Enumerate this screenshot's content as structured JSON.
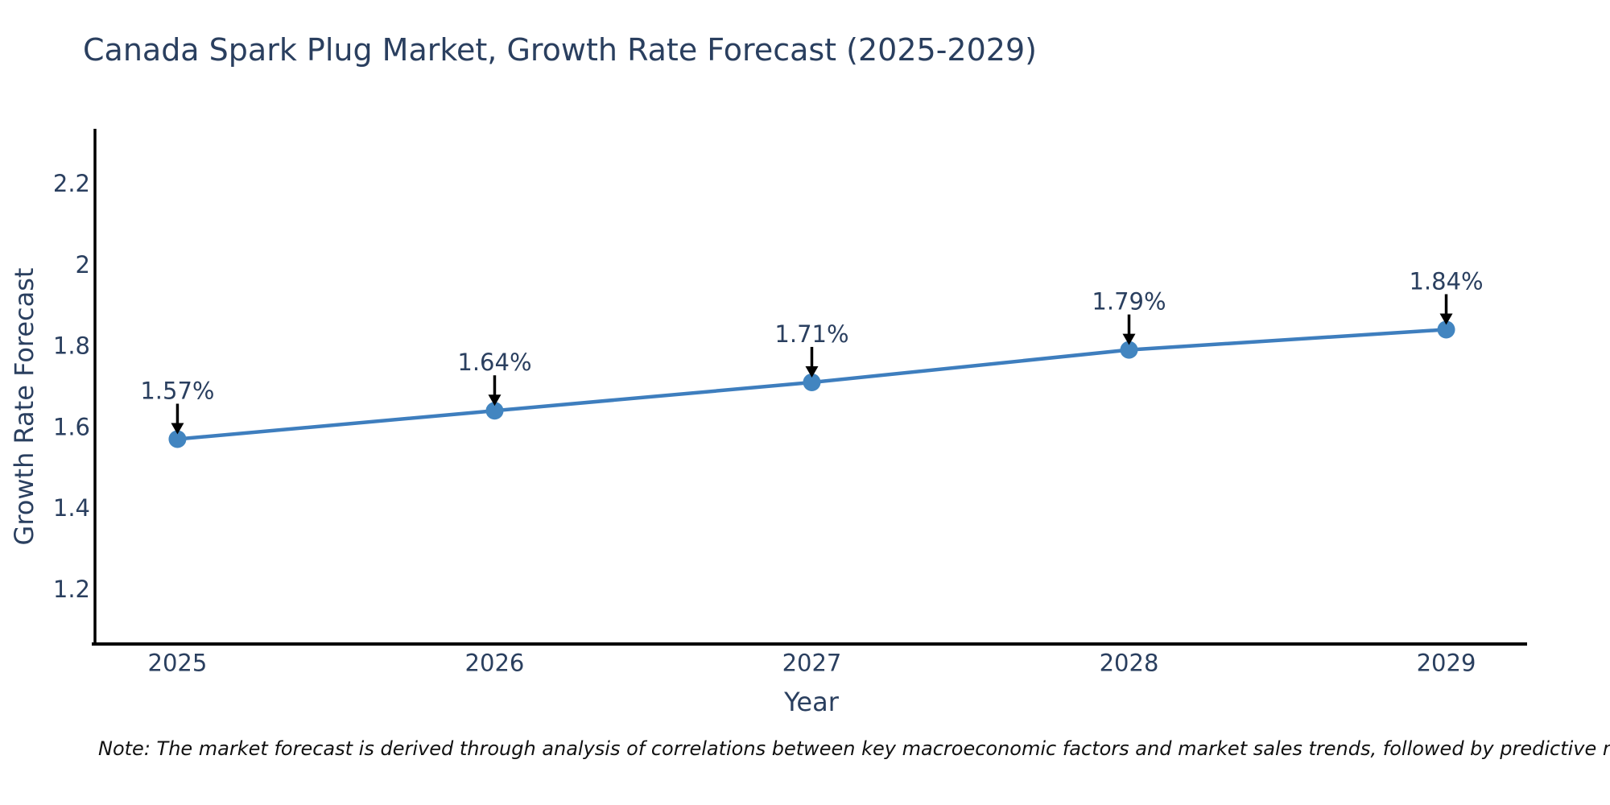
{
  "title": "Canada Spark Plug Market, Growth Rate Forecast (2025-2029)",
  "note": "Note: The market forecast is derived through analysis of correlations between key macroeconomic factors and market sales trends, followed by predictive modeling to project future sales",
  "chart_data": {
    "type": "line",
    "title": "Canada Spark Plug Market, Growth Rate Forecast (2025-2029)",
    "xlabel": "Year",
    "ylabel": "Growth Rate Forecast",
    "x": [
      2025,
      2026,
      2027,
      2028,
      2029
    ],
    "values": [
      1.57,
      1.64,
      1.71,
      1.79,
      1.84
    ],
    "point_labels": [
      "1.57%",
      "1.64%",
      "1.71%",
      "1.79%",
      "1.84%"
    ],
    "xticks": [
      2025,
      2026,
      2027,
      2028,
      2029
    ],
    "xtick_labels": [
      "2025",
      "2026",
      "2027",
      "2028",
      "2029"
    ],
    "yticks": [
      2.2,
      2.0,
      1.8,
      1.6,
      1.4,
      1.2
    ],
    "ytick_labels": [
      "2.2",
      "2",
      "1.8",
      "1.6",
      "1.4",
      "1.2"
    ],
    "xlim": [
      2024.74,
      2029.255
    ],
    "ylim": [
      1.065,
      2.335
    ],
    "grid": false,
    "legend": false,
    "annotation_style": "value labels above points with downward black arrows"
  },
  "colors": {
    "line": "#3E7EBE",
    "marker": "#4285C0",
    "axis": "#000000",
    "text": "#2a3f5f",
    "arrow": "#000000",
    "note_text": "#111111",
    "background": "#ffffff"
  }
}
